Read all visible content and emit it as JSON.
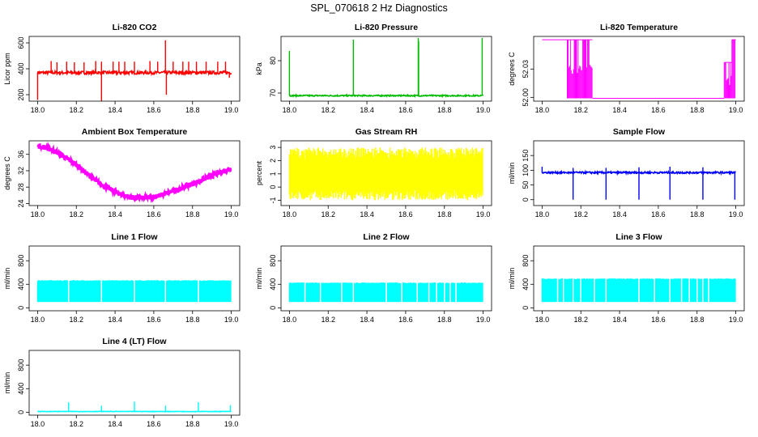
{
  "figure": {
    "title": "SPL_070618  2 Hz Diagnostics"
  },
  "chart_data": [
    {
      "type": "line",
      "title": "Li-820 CO2",
      "ylabel": "Licor ppm",
      "xlim": [
        18.0,
        19.0
      ],
      "xticks": [
        "18.0",
        "18.2",
        "18.4",
        "18.6",
        "18.8",
        "19.0"
      ],
      "ylim": [
        150,
        650
      ],
      "yticks": [
        "200",
        "400",
        "600"
      ],
      "color": "#ff0000",
      "series": [
        {
          "name": "CO2",
          "baseline": 370,
          "noise": 12,
          "spikes_up": [
            [
              18.07,
              460
            ],
            [
              18.1,
              450
            ],
            [
              18.15,
              455
            ],
            [
              18.19,
              450
            ],
            [
              18.24,
              450
            ],
            [
              18.3,
              460
            ],
            [
              18.33,
              455
            ],
            [
              18.39,
              455
            ],
            [
              18.42,
              455
            ],
            [
              18.45,
              455
            ],
            [
              18.5,
              455
            ],
            [
              18.58,
              460
            ],
            [
              18.62,
              455
            ],
            [
              18.66,
              620
            ],
            [
              18.7,
              455
            ],
            [
              18.75,
              455
            ],
            [
              18.78,
              455
            ],
            [
              18.82,
              455
            ],
            [
              18.87,
              455
            ],
            [
              18.93,
              455
            ],
            [
              18.97,
              455
            ]
          ],
          "spikes_down": [
            [
              18.0,
              160
            ],
            [
              18.33,
              150
            ],
            [
              18.665,
              200
            ],
            [
              18.99,
              330
            ]
          ]
        }
      ]
    },
    {
      "type": "line",
      "title": "Li-820 Pressure",
      "ylabel": "kPa",
      "xlim": [
        18.0,
        19.0
      ],
      "xticks": [
        "18.0",
        "18.2",
        "18.4",
        "18.6",
        "18.8",
        "19.0"
      ],
      "ylim": [
        67.5,
        87.5
      ],
      "yticks": [
        "70",
        "80"
      ],
      "color": "#00bb00",
      "series": [
        {
          "name": "Pressure",
          "baseline": 69.2,
          "noise": 0.2,
          "spikes_up": [
            [
              18.0,
              83
            ],
            [
              18.33,
              86.5
            ],
            [
              18.665,
              87
            ],
            [
              18.667,
              86
            ],
            [
              18.995,
              87
            ]
          ],
          "spikes_down": []
        }
      ]
    },
    {
      "type": "line",
      "title": "Li-820 Temperature",
      "ylabel": "degrees C",
      "xlim": [
        18.0,
        19.0
      ],
      "xticks": [
        "18.0",
        "18.2",
        "18.4",
        "18.6",
        "18.8",
        "19.0"
      ],
      "ylim": [
        51.996,
        52.0645
      ],
      "yticks": [
        "52.00",
        "52.03"
      ],
      "color": "#ff00ff",
      "series": [
        {
          "name": "Temperature",
          "levels": [
            {
              "x0": 18.0,
              "x1": 18.13,
              "value": 52.061
            },
            {
              "x0": 18.13,
              "x1": 18.26,
              "value": 52.061,
              "band_low": 51.999
            },
            {
              "x0": 18.26,
              "x1": 18.94,
              "value": 51.999
            },
            {
              "x0": 18.94,
              "x1": 18.98,
              "value": 52.037,
              "band_low": 51.999
            },
            {
              "x0": 18.98,
              "x1": 19.0,
              "value": 52.061,
              "band_low": 51.999
            }
          ]
        }
      ]
    },
    {
      "type": "line",
      "title": "Ambient Box Temperature",
      "ylabel": "degrees C",
      "xlim": [
        18.0,
        19.0
      ],
      "xticks": [
        "18.0",
        "18.2",
        "18.4",
        "18.6",
        "18.8",
        "19.0"
      ],
      "ylim": [
        23.5,
        39.3
      ],
      "yticks": [
        "24",
        "28",
        "32",
        "36"
      ],
      "color": "#ff00ff",
      "series": [
        {
          "name": "Ambient",
          "x": [
            18.0,
            18.05,
            18.1,
            18.2,
            18.3,
            18.4,
            18.48,
            18.55,
            18.62,
            18.7,
            18.8,
            18.9,
            19.0
          ],
          "y": [
            38.0,
            37.6,
            36.5,
            33.5,
            29.5,
            26.8,
            25.5,
            25.3,
            25.8,
            27.0,
            28.8,
            30.8,
            32.6
          ],
          "noise": 0.6
        }
      ]
    },
    {
      "type": "line",
      "title": "Gas Stream RH",
      "ylabel": "percent",
      "xlim": [
        18.0,
        19.0
      ],
      "xticks": [
        "18.0",
        "18.2",
        "18.4",
        "18.6",
        "18.8",
        "19.0"
      ],
      "ylim": [
        -1.4,
        3.5
      ],
      "yticks": [
        "-1",
        "0",
        "1",
        "2",
        "3"
      ],
      "color": "#ffff00",
      "series": [
        {
          "name": "RH",
          "baseline": 1.0,
          "band_low": -1.0,
          "band_high": 3.0
        }
      ]
    },
    {
      "type": "line",
      "title": "Sample Flow",
      "ylabel": "ml/min",
      "xlim": [
        18.0,
        19.0
      ],
      "xticks": [
        "18.0",
        "18.2",
        "18.4",
        "18.6",
        "18.8",
        "19.0"
      ],
      "ylim": [
        -20,
        200
      ],
      "yticks": [
        "0",
        "50",
        "100",
        "150"
      ],
      "color": "#0000ff",
      "series": [
        {
          "name": "Sample",
          "baseline": 92,
          "noise": 3,
          "spikes_up": [
            [
              18.0,
              112
            ],
            [
              18.16,
              108
            ],
            [
              18.33,
              108
            ],
            [
              18.5,
              110
            ],
            [
              18.66,
              112
            ],
            [
              18.83,
              110
            ]
          ],
          "spikes_down": [
            [
              18.16,
              0
            ],
            [
              18.33,
              0
            ],
            [
              18.5,
              0
            ],
            [
              18.66,
              0
            ],
            [
              18.83,
              0
            ],
            [
              18.995,
              0
            ]
          ]
        }
      ]
    },
    {
      "type": "area",
      "title": "Line 1 Flow",
      "ylabel": "ml/min",
      "xlim": [
        18.0,
        19.0
      ],
      "xticks": [
        "18.0",
        "18.2",
        "18.4",
        "18.6",
        "18.8",
        "19.0"
      ],
      "ylim": [
        -50,
        1050
      ],
      "yticks": [
        "0",
        "400",
        "800"
      ],
      "color": "#00ffff",
      "series": [
        {
          "name": "Line 1",
          "band_low": 100,
          "band_high": 470,
          "gaps": [
            18.16,
            18.33,
            18.5,
            18.66,
            18.83
          ]
        }
      ]
    },
    {
      "type": "area",
      "title": "Line 2 Flow",
      "ylabel": "ml/min",
      "xlim": [
        18.0,
        19.0
      ],
      "xticks": [
        "18.0",
        "18.2",
        "18.4",
        "18.6",
        "18.8",
        "19.0"
      ],
      "ylim": [
        -50,
        1050
      ],
      "yticks": [
        "0",
        "400",
        "800"
      ],
      "color": "#00ffff",
      "series": [
        {
          "name": "Line 2",
          "band_low": 100,
          "band_high": 430,
          "gaps": [
            18.08,
            18.16,
            18.27,
            18.33,
            18.5,
            18.58,
            18.66,
            18.72,
            18.76,
            18.8,
            18.83,
            18.86
          ]
        }
      ]
    },
    {
      "type": "area",
      "title": "Line 3 Flow",
      "ylabel": "ml/min",
      "xlim": [
        18.0,
        19.0
      ],
      "xticks": [
        "18.0",
        "18.2",
        "18.4",
        "18.6",
        "18.8",
        "19.0"
      ],
      "ylim": [
        -50,
        1050
      ],
      "yticks": [
        "0",
        "400",
        "800"
      ],
      "color": "#00ffff",
      "series": [
        {
          "name": "Line 3",
          "band_low": 100,
          "band_high": 500,
          "gaps": [
            18.08,
            18.11,
            18.16,
            18.2,
            18.27,
            18.33,
            18.5,
            18.58,
            18.66,
            18.72,
            18.76,
            18.8,
            18.83,
            18.86
          ]
        }
      ]
    },
    {
      "type": "line",
      "title": "Line 4 (LT) Flow",
      "ylabel": "ml/min",
      "xlim": [
        18.0,
        19.0
      ],
      "xticks": [
        "18.0",
        "18.2",
        "18.4",
        "18.6",
        "18.8",
        "19.0"
      ],
      "ylim": [
        -50,
        1050
      ],
      "yticks": [
        "0",
        "400",
        "800"
      ],
      "color": "#00ffff",
      "series": [
        {
          "name": "Line 4",
          "baseline": 12,
          "noise": 4,
          "spikes_up": [
            [
              18.16,
              170
            ],
            [
              18.33,
              110
            ],
            [
              18.5,
              180
            ],
            [
              18.66,
              110
            ],
            [
              18.83,
              170
            ],
            [
              18.995,
              120
            ]
          ],
          "spikes_down": []
        }
      ]
    }
  ]
}
